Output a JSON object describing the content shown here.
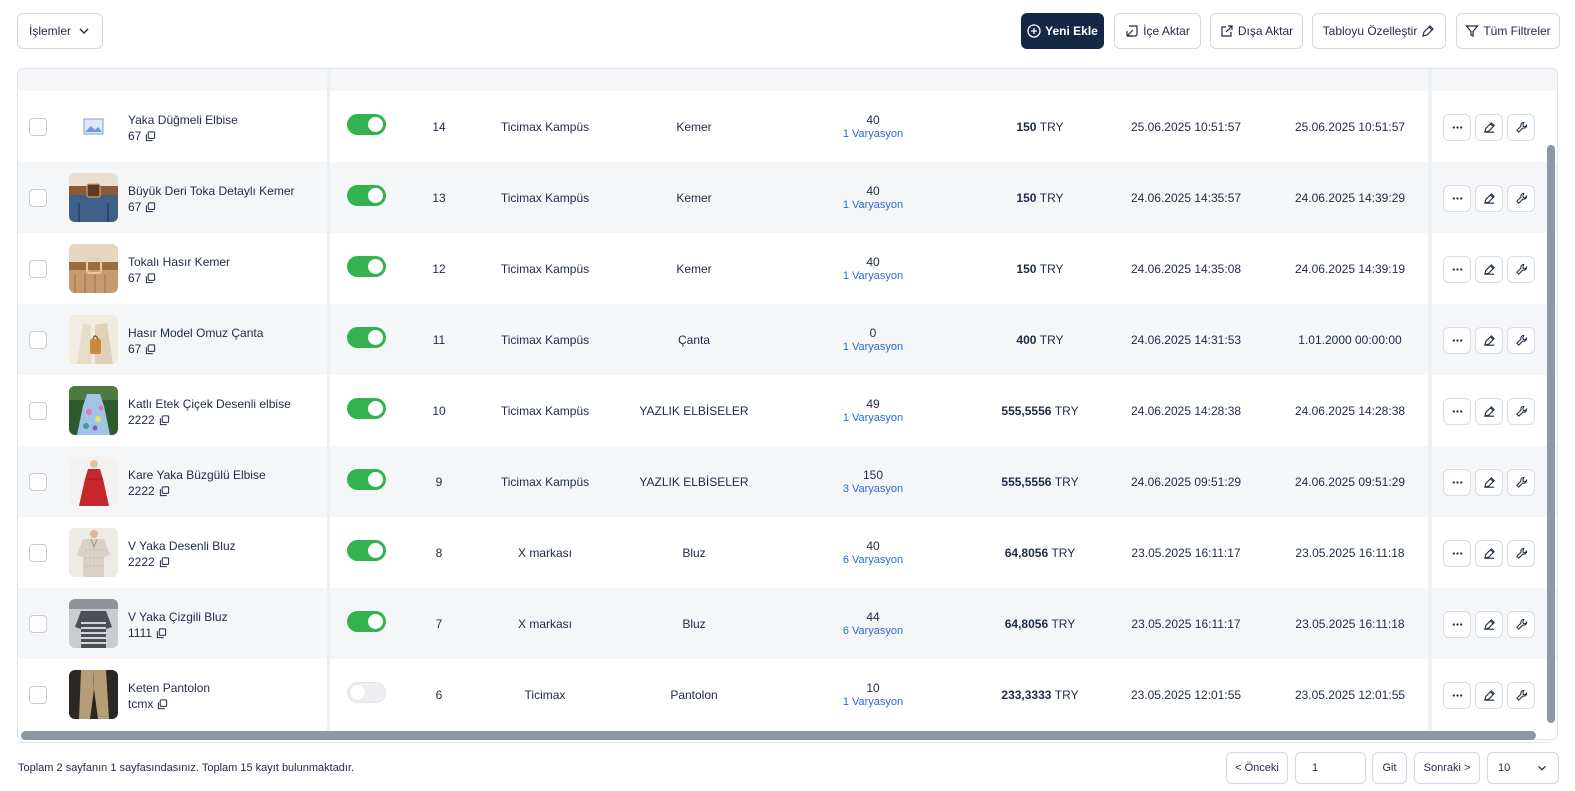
{
  "toolbar": {
    "actions_label": "İşlemler",
    "new_label": "Yeni Ekle",
    "import_label": "İçe Aktar",
    "export_label": "Dışa Aktar",
    "customize_label": "Tabloyu Özelleştir",
    "filters_label": "Tüm Filtreler"
  },
  "colors": {
    "primary": "#142846",
    "toggle_on": "#34b24f",
    "variant_link": "#2e6bd1"
  },
  "rows": [
    {
      "name": "Yaka Düğmeli Elbise",
      "code": "67",
      "active": true,
      "id": "14",
      "brand": "Ticimax Kampüs",
      "category": "Kemer",
      "stock": "40",
      "variants": "1 Varyasyon",
      "price": "150",
      "currency": "TRY",
      "created": "25.06.2025 10:51:57",
      "updated": "25.06.2025 10:51:57",
      "thumb": "placeholder"
    },
    {
      "name": "Büyük Deri Toka Detaylı Kemer",
      "code": "67",
      "active": true,
      "id": "13",
      "brand": "Ticimax Kampüs",
      "category": "Kemer",
      "stock": "40",
      "variants": "1 Varyasyon",
      "price": "150",
      "currency": "TRY",
      "created": "24.06.2025 14:35:57",
      "updated": "24.06.2025 14:39:29",
      "thumb": "belt-denim"
    },
    {
      "name": "Tokalı Hasır Kemer",
      "code": "67",
      "active": true,
      "id": "12",
      "brand": "Ticimax Kampüs",
      "category": "Kemer",
      "stock": "40",
      "variants": "1 Varyasyon",
      "price": "150",
      "currency": "TRY",
      "created": "24.06.2025 14:35:08",
      "updated": "24.06.2025 14:39:19",
      "thumb": "straw-belt"
    },
    {
      "name": "Hasır Model Omuz Çanta",
      "code": "67",
      "active": true,
      "id": "11",
      "brand": "Ticimax Kampüs",
      "category": "Çanta",
      "stock": "0",
      "variants": "1 Varyasyon",
      "price": "400",
      "currency": "TRY",
      "created": "24.06.2025 14:31:53",
      "updated": "1.01.2000 00:00:00",
      "thumb": "straw-bag"
    },
    {
      "name": "Katlı Etek Çiçek Desenli elbise",
      "code": "2222",
      "active": true,
      "id": "10",
      "brand": "Ticimax Kampüs",
      "category": "YAZLIK ELBİSELER",
      "stock": "49",
      "variants": "1 Varyasyon",
      "price": "555,5556",
      "currency": "TRY",
      "created": "24.06.2025 14:28:38",
      "updated": "24.06.2025 14:28:38",
      "thumb": "floral-dress"
    },
    {
      "name": "Kare Yaka Büzgülü Elbise",
      "code": "2222",
      "active": true,
      "id": "9",
      "brand": "Ticimax Kampüs",
      "category": "YAZLIK ELBİSELER",
      "stock": "150",
      "variants": "3 Varyasyon",
      "price": "555,5556",
      "currency": "TRY",
      "created": "24.06.2025 09:51:29",
      "updated": "24.06.2025 09:51:29",
      "thumb": "red-dress"
    },
    {
      "name": "V Yaka Desenli Bluz",
      "code": "2222",
      "active": true,
      "id": "8",
      "brand": "X markası",
      "category": "Bluz",
      "stock": "40",
      "variants": "6 Varyasyon",
      "price": "64,8056",
      "currency": "TRY",
      "created": "23.05.2025 16:11:17",
      "updated": "23.05.2025 16:11:18",
      "thumb": "beige-blouse"
    },
    {
      "name": "V Yaka Çizgili Bluz",
      "code": "1111",
      "active": true,
      "id": "7",
      "brand": "X markası",
      "category": "Bluz",
      "stock": "44",
      "variants": "6 Varyasyon",
      "price": "64,8056",
      "currency": "TRY",
      "created": "23.05.2025 16:11:17",
      "updated": "23.05.2025 16:11:18",
      "thumb": "striped-blouse"
    },
    {
      "name": "Keten Pantolon",
      "code": "tcmx",
      "active": false,
      "id": "6",
      "brand": "Ticimax",
      "category": "Pantolon",
      "stock": "10",
      "variants": "1 Varyasyon",
      "price": "233,3333",
      "currency": "TRY",
      "created": "23.05.2025 12:01:55",
      "updated": "23.05.2025 12:01:55",
      "thumb": "linen-pants"
    }
  ],
  "footer": {
    "summary": "Toplam 2 sayfanın 1 sayfasındasınız. Toplam 15 kayıt bulunmaktadır.",
    "prev_label": "< Önceki",
    "page_value": "1",
    "go_label": "Git",
    "next_label": "Sonraki >",
    "page_size": "10"
  }
}
